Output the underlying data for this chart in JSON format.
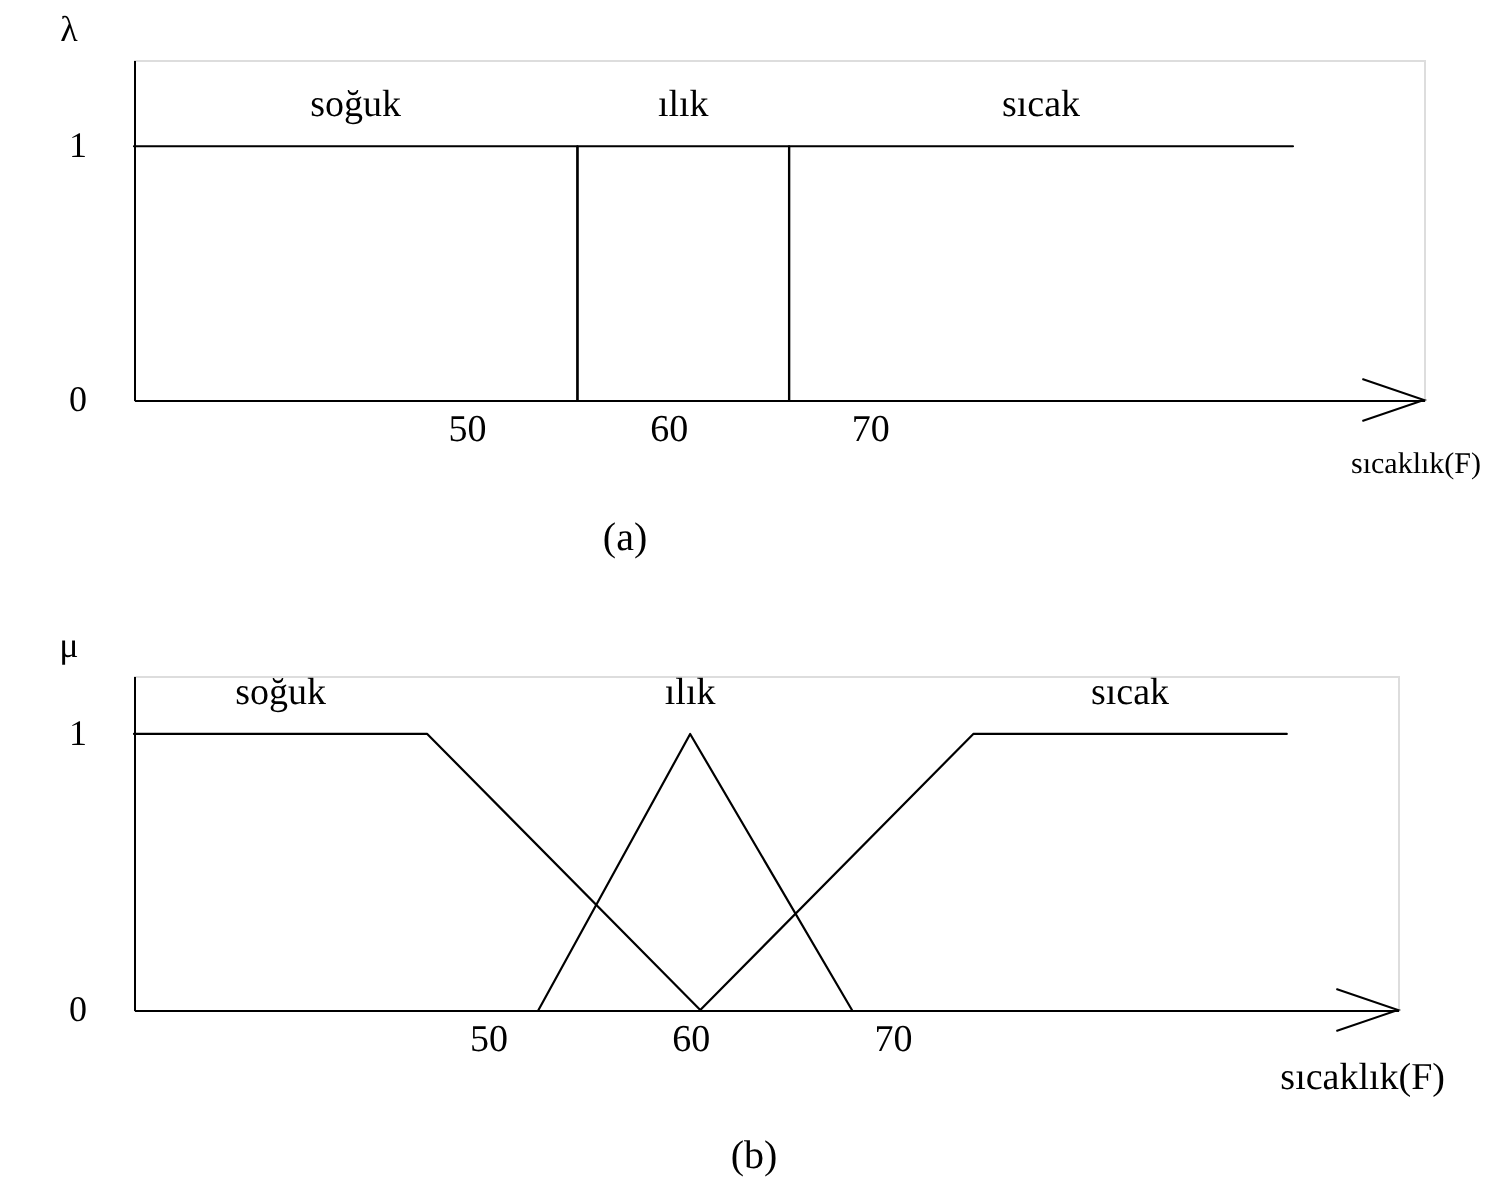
{
  "chart_data": [
    {
      "type": "line",
      "title": "(a)",
      "xlabel": "sıcaklık(F)",
      "ylabel": "λ",
      "xlim": [
        33.5,
        97.5
      ],
      "ylim": [
        0,
        1.34
      ],
      "xticks": [
        50,
        60,
        70
      ],
      "yticks": [
        0,
        1
      ],
      "grid": false,
      "series": [
        {
          "name": "soğuk",
          "color": "#000000",
          "x": [
            33.5,
            55.5,
            55.5
          ],
          "values": [
            1,
            1,
            0
          ]
        },
        {
          "name": "ılık",
          "color": "#000000",
          "x": [
            55.5,
            55.5,
            66,
            66
          ],
          "values": [
            0,
            1,
            1,
            0
          ]
        },
        {
          "name": "sıcak",
          "color": "#000000",
          "x": [
            66,
            66,
            91
          ],
          "values": [
            0,
            1,
            1
          ]
        }
      ]
    },
    {
      "type": "line",
      "title": "(b)",
      "xlabel": "sıcaklık(F)",
      "ylabel": "μ",
      "xlim": [
        32.5,
        95
      ],
      "ylim": [
        0,
        1.21
      ],
      "xticks": [
        50,
        60,
        70
      ],
      "yticks": [
        0,
        1
      ],
      "grid": false,
      "series": [
        {
          "name": "soğuk",
          "color": "#000000",
          "x": [
            32.5,
            47,
            60.5
          ],
          "values": [
            1,
            1,
            0
          ]
        },
        {
          "name": "ılık",
          "color": "#000000",
          "x": [
            52.5,
            60,
            68
          ],
          "values": [
            0,
            1,
            0
          ]
        },
        {
          "name": "sıcak",
          "color": "#000000",
          "x": [
            60.5,
            74,
            89.5
          ],
          "values": [
            0,
            1,
            1
          ]
        }
      ]
    }
  ]
}
